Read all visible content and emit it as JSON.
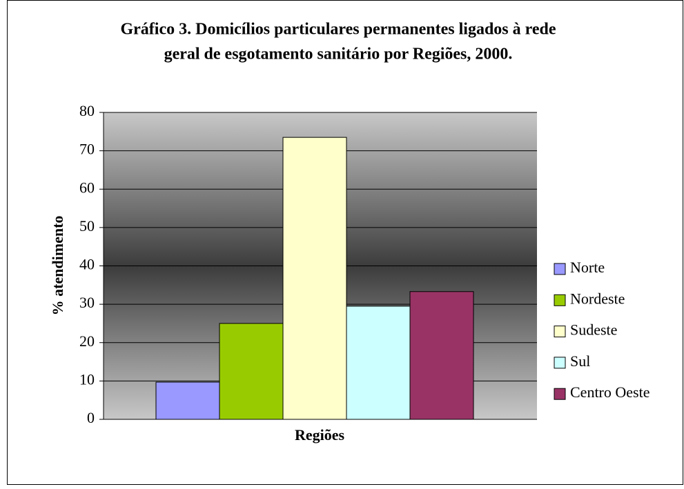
{
  "chart_data": {
    "type": "bar",
    "title": [
      "Gráfico 3. Domicílios particulares permanentes ligados à rede",
      "geral de esgotamento sanitário por Regiões, 2000."
    ],
    "xlabel": "Regiões",
    "ylabel": "% atendimento",
    "ylim": [
      0,
      80
    ],
    "yticks": [
      0,
      10,
      20,
      30,
      40,
      50,
      60,
      70,
      80
    ],
    "grid": true,
    "legend": "right",
    "series": [
      {
        "name": "Norte",
        "color": "#9999ff",
        "values": [
          9.7
        ]
      },
      {
        "name": "Nordeste",
        "color": "#99cc00",
        "values": [
          25
        ]
      },
      {
        "name": "Sudeste",
        "color": "#ffffcc",
        "values": [
          73.5
        ]
      },
      {
        "name": "Sul",
        "color": "#ccffff",
        "values": [
          29.5
        ]
      },
      {
        "name": "Centro Oeste",
        "color": "#993366",
        "values": [
          33.3
        ]
      }
    ]
  }
}
